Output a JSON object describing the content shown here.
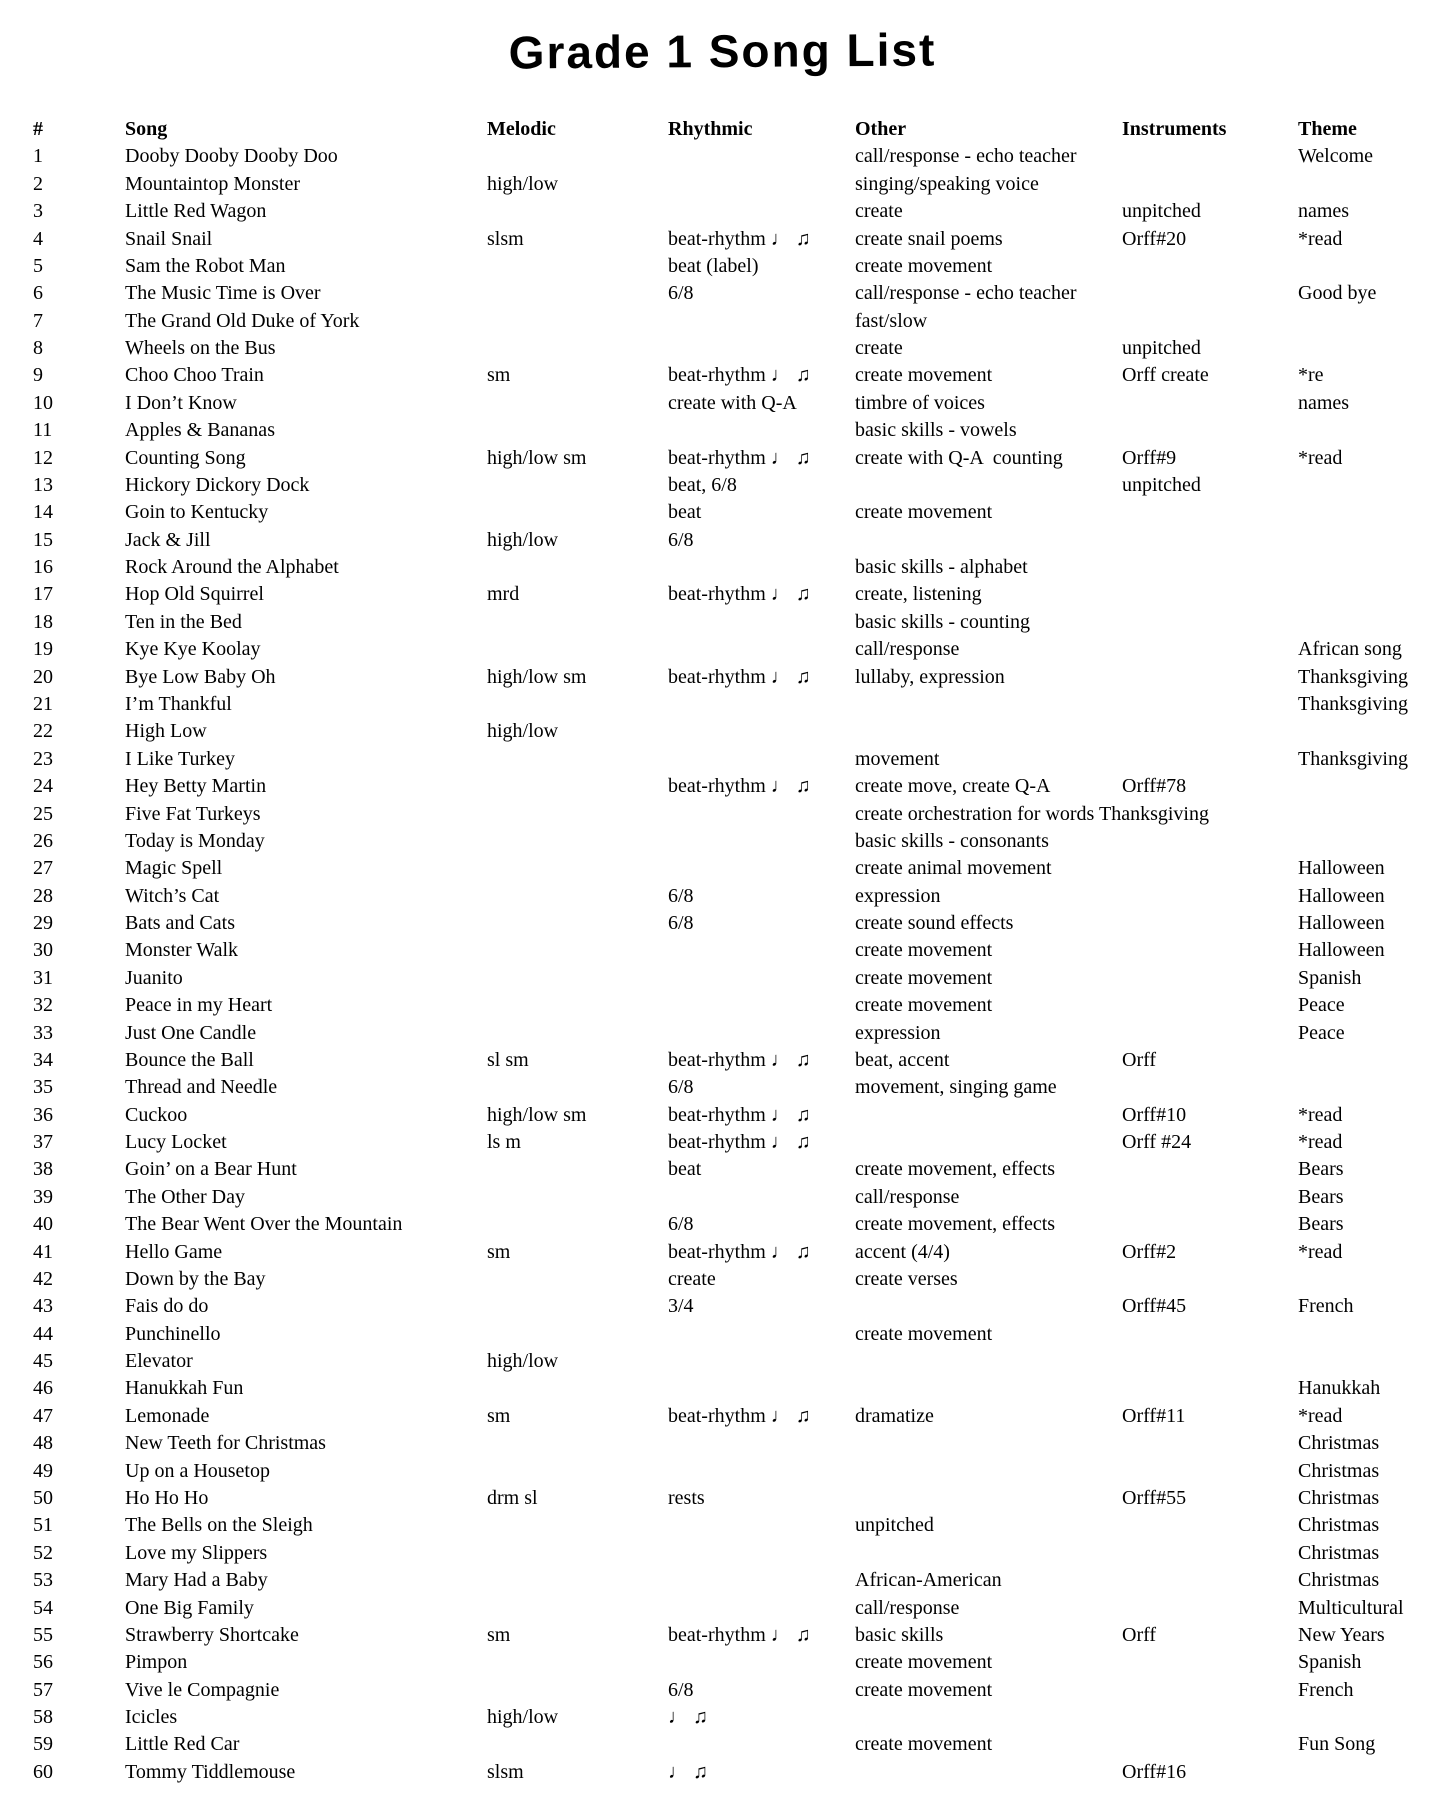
{
  "title": "Grade 1 Song List",
  "table": {
    "columns": [
      "#",
      "Song",
      "Melodic",
      "Rhythmic",
      "Other",
      "Instruments",
      "Theme"
    ],
    "row_fields": [
      "num",
      "song",
      "melodic",
      "rhythmic",
      "other",
      "instruments",
      "theme"
    ],
    "rows": [
      [
        "1",
        "Dooby Dooby Dooby Doo",
        "",
        "",
        "call/response - echo teacher",
        "",
        "Welcome"
      ],
      [
        "2",
        "Mountaintop Monster",
        "high/low",
        "",
        "singing/speaking voice",
        "",
        ""
      ],
      [
        "3",
        "Little Red Wagon",
        "",
        "",
        "create",
        "unpitched",
        "names"
      ],
      [
        "4",
        "Snail Snail",
        "slsm",
        "beat-rhythm ♩ ♫",
        "create snail poems",
        "Orff#20",
        "*read"
      ],
      [
        "5",
        "Sam the Robot Man",
        "",
        "beat (label)",
        "create movement",
        "",
        ""
      ],
      [
        "6",
        "The Music Time is Over",
        "",
        "6/8",
        "call/response - echo teacher",
        "",
        "Good bye"
      ],
      [
        "7",
        "The Grand Old Duke of York",
        "",
        "",
        "fast/slow",
        "",
        ""
      ],
      [
        "8",
        "Wheels on the Bus",
        "",
        "",
        "create",
        "unpitched",
        ""
      ],
      [
        "9",
        "Choo Choo Train",
        "sm",
        "beat-rhythm ♩ ♫",
        "create movement",
        "Orff create",
        "*re"
      ],
      [
        "10",
        "I Don’t Know",
        "",
        "create with Q-A",
        "timbre of voices",
        "",
        "names"
      ],
      [
        "11",
        "Apples & Bananas",
        "",
        "",
        "basic skills - vowels",
        "",
        ""
      ],
      [
        "12",
        "Counting Song",
        "high/low sm",
        "beat-rhythm ♩ ♫",
        "create with Q-A  counting",
        "Orff#9",
        "*read"
      ],
      [
        "13",
        "Hickory Dickory Dock",
        "",
        "beat, 6/8",
        "",
        "unpitched",
        ""
      ],
      [
        "14",
        "Goin to Kentucky",
        "",
        "beat",
        "create movement",
        "",
        ""
      ],
      [
        "15",
        "Jack & Jill",
        "high/low",
        "6/8",
        "",
        "",
        ""
      ],
      [
        "16",
        "Rock Around the Alphabet",
        "",
        "",
        "basic skills - alphabet",
        "",
        ""
      ],
      [
        "17",
        "Hop Old Squirrel",
        "mrd",
        "beat-rhythm ♩ ♫",
        "create, listening",
        "",
        ""
      ],
      [
        "18",
        "Ten in the Bed",
        "",
        "",
        "basic skills - counting",
        "",
        ""
      ],
      [
        "19",
        "Kye Kye Koolay",
        "",
        "",
        "call/response",
        "",
        "African song"
      ],
      [
        "20",
        "Bye Low Baby Oh",
        "high/low sm",
        "beat-rhythm ♩ ♫",
        "lullaby, expression",
        "",
        "Thanksgiving"
      ],
      [
        "21",
        "I’m Thankful",
        "",
        "",
        "",
        "",
        "Thanksgiving"
      ],
      [
        "22",
        "High Low",
        "high/low",
        "",
        "",
        "",
        ""
      ],
      [
        "23",
        "I Like Turkey",
        "",
        "",
        "movement",
        "",
        "Thanksgiving"
      ],
      [
        "24",
        "Hey Betty Martin",
        "",
        "beat-rhythm ♩ ♫",
        "create move, create Q-A",
        "Orff#78",
        ""
      ],
      [
        "25",
        "Five Fat Turkeys",
        "",
        "",
        "create orchestration for words Thanksgiving",
        "",
        ""
      ],
      [
        "26",
        "Today is Monday",
        "",
        "",
        "basic skills - consonants",
        "",
        ""
      ],
      [
        "27",
        "Magic Spell",
        "",
        "",
        "create animal movement",
        "",
        "Halloween"
      ],
      [
        "28",
        "Witch’s Cat",
        "",
        "6/8",
        "expression",
        "",
        "Halloween"
      ],
      [
        "29",
        "Bats and Cats",
        "",
        "6/8",
        "create sound effects",
        "",
        "Halloween"
      ],
      [
        "30",
        "Monster Walk",
        "",
        "",
        "create movement",
        "",
        "Halloween"
      ],
      [
        "31",
        "Juanito",
        "",
        "",
        "create movement",
        "",
        "Spanish"
      ],
      [
        "32",
        "Peace in my Heart",
        "",
        "",
        "create movement",
        "",
        "Peace"
      ],
      [
        "33",
        "Just One Candle",
        "",
        "",
        "expression",
        "",
        "Peace"
      ],
      [
        "34",
        "Bounce the Ball",
        "sl sm",
        "beat-rhythm ♩ ♫",
        "beat, accent",
        "Orff",
        ""
      ],
      [
        "35",
        "Thread and Needle",
        "",
        "6/8",
        "movement, singing game",
        "",
        ""
      ],
      [
        "36",
        "Cuckoo",
        "high/low sm",
        "beat-rhythm ♩ ♫",
        "",
        "Orff#10",
        "*read"
      ],
      [
        "37",
        "Lucy Locket",
        "ls m",
        "beat-rhythm ♩ ♫",
        "",
        "Orff #24",
        "*read"
      ],
      [
        "38",
        "Goin’ on a Bear Hunt",
        "",
        "beat",
        "create movement, effects",
        "",
        "Bears"
      ],
      [
        "39",
        "The Other Day",
        "",
        "",
        "call/response",
        "",
        "Bears"
      ],
      [
        "40",
        "The Bear Went Over the Mountain",
        "",
        "6/8",
        "create movement, effects",
        "",
        "Bears"
      ],
      [
        "41",
        "Hello Game",
        "sm",
        "beat-rhythm ♩ ♫",
        "accent (4/4)",
        "Orff#2",
        "*read"
      ],
      [
        "42",
        "Down by the Bay",
        "",
        "create",
        "create verses",
        "",
        ""
      ],
      [
        "43",
        "Fais do do",
        "",
        "3/4",
        "",
        "Orff#45",
        "French"
      ],
      [
        "44",
        "Punchinello",
        "",
        "",
        "create movement",
        "",
        ""
      ],
      [
        "45",
        "Elevator",
        "high/low",
        "",
        "",
        "",
        ""
      ],
      [
        "46",
        "Hanukkah Fun",
        "",
        "",
        "",
        "",
        "Hanukkah"
      ],
      [
        "47",
        "Lemonade",
        "sm",
        "beat-rhythm ♩ ♫",
        "dramatize",
        "Orff#11",
        "*read"
      ],
      [
        "48",
        "New Teeth for Christmas",
        "",
        "",
        "",
        "",
        "Christmas"
      ],
      [
        "49",
        "Up on a Housetop",
        "",
        "",
        "",
        "",
        "Christmas"
      ],
      [
        "50",
        "Ho Ho Ho",
        "drm sl",
        "rests",
        "",
        "Orff#55",
        "Christmas"
      ],
      [
        "51",
        "The Bells on the Sleigh",
        "",
        "",
        "unpitched",
        "",
        "Christmas"
      ],
      [
        "52",
        "Love my Slippers",
        "",
        "",
        "",
        "",
        "Christmas"
      ],
      [
        "53",
        "Mary Had a Baby",
        "",
        "",
        "African-American",
        "",
        "Christmas"
      ],
      [
        "54",
        "One Big Family",
        "",
        "",
        "call/response",
        "",
        "Multicultural"
      ],
      [
        "55",
        "Strawberry Shortcake",
        "sm",
        "beat-rhythm ♩ ♫",
        "basic skills",
        "Orff",
        "New Years"
      ],
      [
        "56",
        "Pimpon",
        "",
        "",
        "create movement",
        "",
        "Spanish"
      ],
      [
        "57",
        "Vive le Compagnie",
        "",
        "6/8",
        "create movement",
        "",
        "French"
      ],
      [
        "58",
        "Icicles",
        "high/low",
        "♩ ♫",
        "",
        "",
        ""
      ],
      [
        "59",
        "Little Red Car",
        "",
        "",
        "create movement",
        "",
        "Fun Song"
      ],
      [
        "60",
        "Tommy Tiddlemouse",
        "slsm",
        "♩ ♫",
        "",
        "Orff#16",
        ""
      ]
    ]
  }
}
